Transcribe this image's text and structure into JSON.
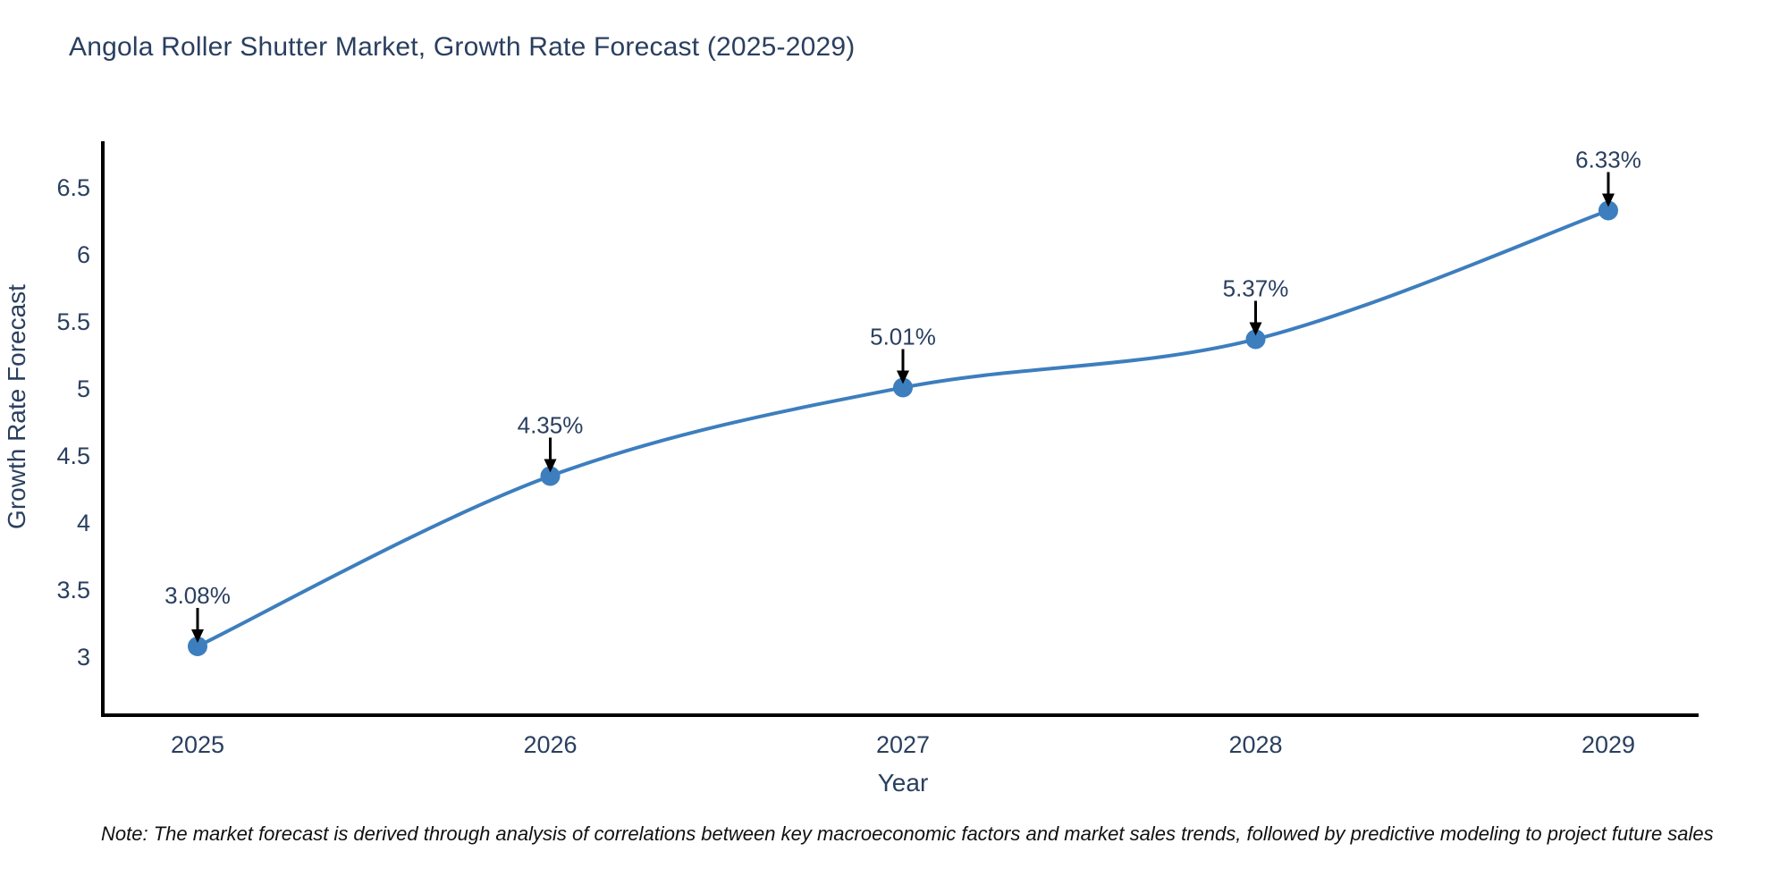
{
  "note": "Note: The market forecast is derived through analysis of correlations between key macroeconomic factors and market sales trends, followed by predictive modeling to project future sales",
  "chart_data": {
    "type": "line",
    "title": "Angola Roller Shutter Market, Growth Rate Forecast (2025-2029)",
    "x": [
      2025,
      2026,
      2027,
      2028,
      2029
    ],
    "xticklabels": [
      "2025",
      "2026",
      "2027",
      "2028",
      "2029"
    ],
    "y": [
      3.08,
      4.35,
      5.01,
      5.37,
      6.33
    ],
    "labels": [
      "3.08%",
      "4.35%",
      "5.01%",
      "5.37%",
      "6.33%"
    ],
    "xlabel": "Year",
    "ylabel": "Growth Rate Forecast",
    "yticks": [
      3,
      3.5,
      4,
      4.5,
      5,
      5.5,
      6,
      6.5
    ],
    "ylim": [
      2.57,
      6.93
    ],
    "xlim": [
      2024.73,
      2029.26
    ],
    "line_shape": "spline",
    "grid": false,
    "legend": "none",
    "annotation_style": "black-arrow-pointing-down-to-marker",
    "colors": {
      "line": "#3d7ebe",
      "marker": "#3d7ebe",
      "annotation_arrow": "#000000",
      "text": "#2a3f5f",
      "axis": "#000000",
      "background": "#ffffff"
    }
  }
}
